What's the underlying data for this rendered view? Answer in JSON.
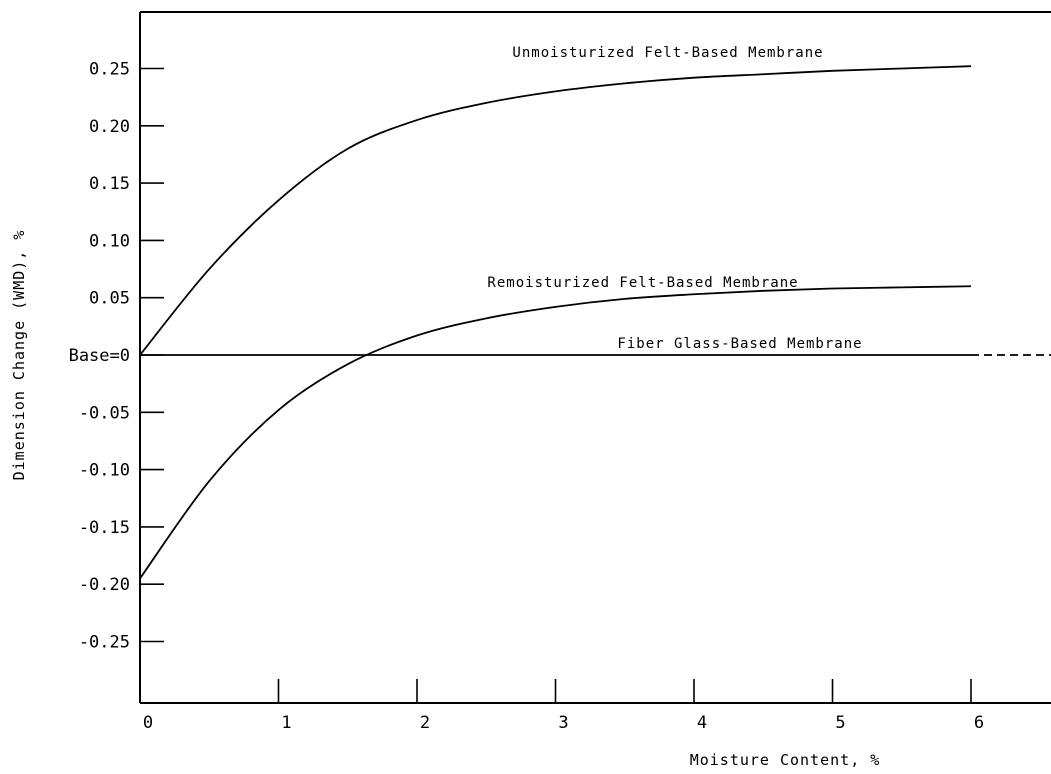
{
  "chart_data": {
    "type": "line",
    "title": "",
    "xlabel": "Moisture Content, %",
    "ylabel": "Dimension Change (WMD), %",
    "xlim": [
      0,
      6.5
    ],
    "ylim": [
      -0.3,
      0.3
    ],
    "grid": false,
    "x_ticks": [
      {
        "value": 0,
        "label": "0"
      },
      {
        "value": 1,
        "label": "1"
      },
      {
        "value": 2,
        "label": "2"
      },
      {
        "value": 3,
        "label": "3"
      },
      {
        "value": 4,
        "label": "4"
      },
      {
        "value": 5,
        "label": "5"
      },
      {
        "value": 6,
        "label": "6"
      }
    ],
    "y_ticks": [
      {
        "value": 0.25,
        "label": "0.25"
      },
      {
        "value": 0.2,
        "label": "0.20"
      },
      {
        "value": 0.15,
        "label": "0.15"
      },
      {
        "value": 0.1,
        "label": "0.10"
      },
      {
        "value": 0.05,
        "label": "0.05"
      },
      {
        "value": 0.0,
        "label": "Base=0"
      },
      {
        "value": -0.05,
        "label": "-0.05"
      },
      {
        "value": -0.1,
        "label": "-0.10"
      },
      {
        "value": -0.15,
        "label": "-0.15"
      },
      {
        "value": -0.2,
        "label": "-0.20"
      },
      {
        "value": -0.25,
        "label": "-0.25"
      }
    ],
    "series": [
      {
        "name": "Unmoisturized Felt-Based Membrane",
        "x": [
          0,
          0.5,
          1,
          1.5,
          2,
          2.5,
          3,
          3.5,
          4,
          4.5,
          5,
          5.5,
          6
        ],
        "y": [
          0.0,
          0.075,
          0.135,
          0.18,
          0.205,
          0.22,
          0.23,
          0.237,
          0.242,
          0.245,
          0.248,
          0.25,
          0.252
        ]
      },
      {
        "name": "Remoisturized Felt-Based Membrane",
        "x": [
          0,
          0.5,
          1,
          1.5,
          2,
          2.5,
          3,
          3.5,
          4,
          4.5,
          5,
          5.5,
          6
        ],
        "y": [
          -0.195,
          -0.11,
          -0.048,
          -0.008,
          0.017,
          0.032,
          0.042,
          0.049,
          0.053,
          0.056,
          0.058,
          0.059,
          0.06
        ]
      },
      {
        "name": "Fiber Glass-Based Membrane",
        "x": [
          0,
          6,
          6.5
        ],
        "y": [
          0,
          0,
          0
        ],
        "dashed_from_x": 6
      }
    ]
  }
}
